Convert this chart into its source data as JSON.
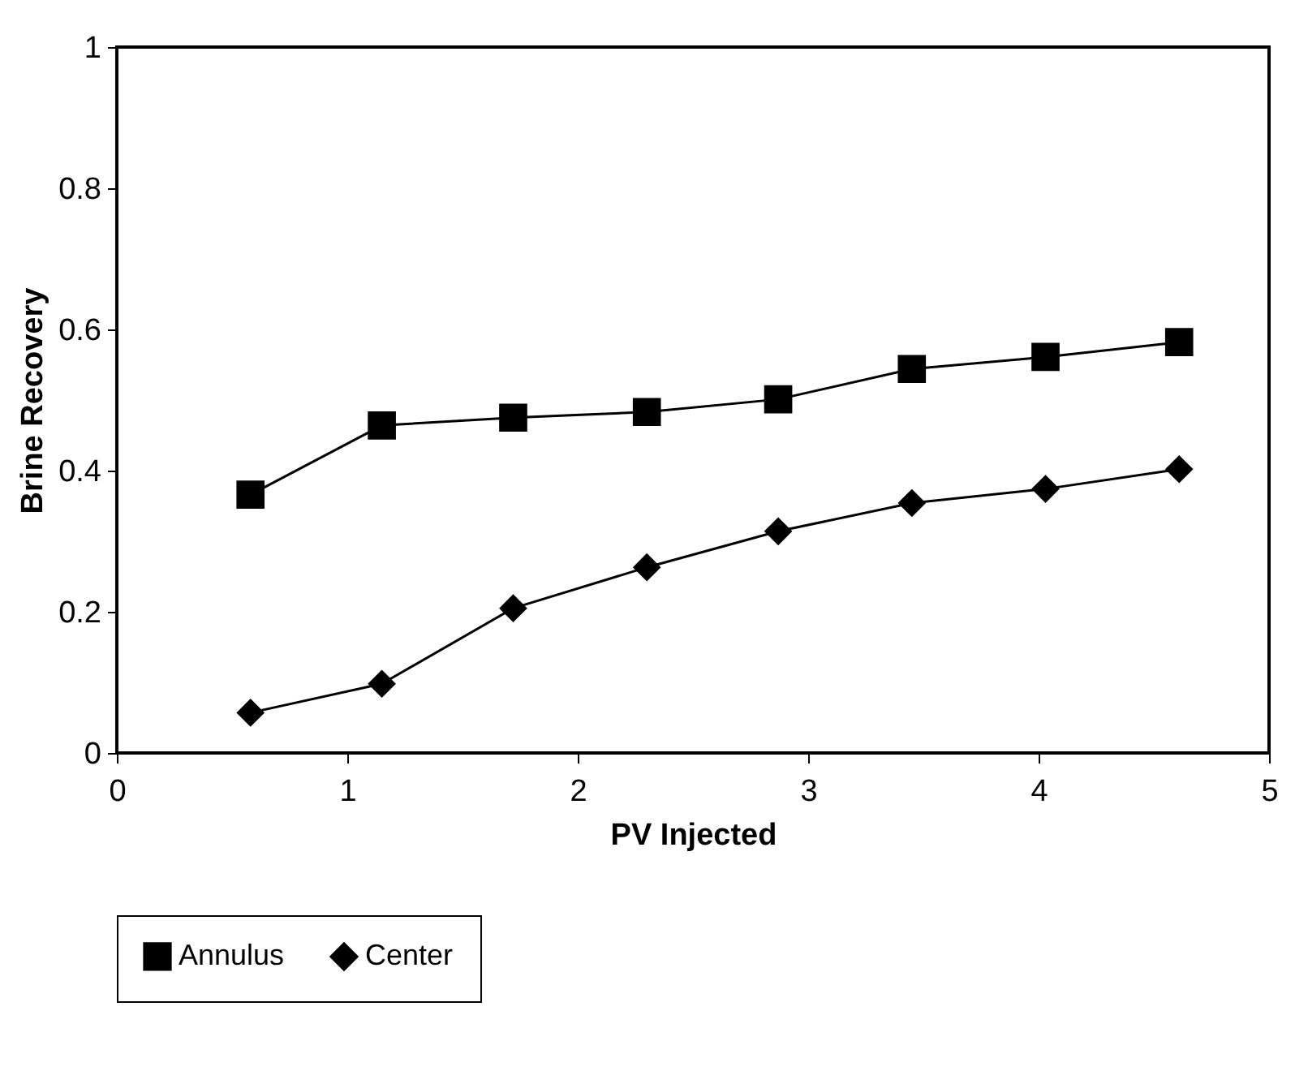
{
  "chart_data": {
    "type": "line",
    "xlabel": "PV Injected",
    "ylabel": "Brine Recovery",
    "x": [
      0.58,
      1.15,
      1.72,
      2.3,
      2.87,
      3.45,
      4.03,
      4.61
    ],
    "series": [
      {
        "name": "Annulus",
        "color": "#000000",
        "marker": "square",
        "values": [
          0.366,
          0.464,
          0.475,
          0.483,
          0.501,
          0.544,
          0.561,
          0.582
        ]
      },
      {
        "name": "Center",
        "color": "#000000",
        "marker": "diamond",
        "values": [
          0.057,
          0.098,
          0.205,
          0.263,
          0.314,
          0.354,
          0.374,
          0.402
        ]
      }
    ],
    "xlim": [
      0,
      5
    ],
    "xticks": [
      0,
      1,
      2,
      3,
      4,
      5
    ],
    "ylim": [
      0,
      1
    ],
    "yticks": [
      0,
      0.2,
      0.4,
      0.6,
      0.8,
      1
    ],
    "grid": false,
    "legend": "bottom",
    "line_style": "solid"
  }
}
